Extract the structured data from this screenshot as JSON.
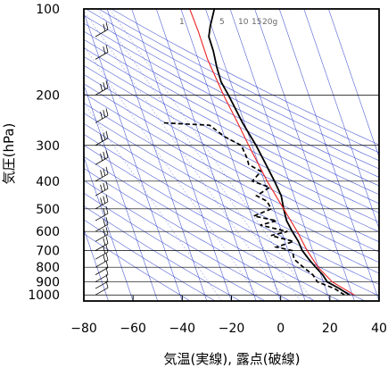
{
  "chart_data": {
    "type": "skew-t",
    "xlabel": "気温(実線), 露点(破線)",
    "ylabel": "気圧(hPa)",
    "xlim": [
      -80,
      40
    ],
    "ylim": [
      1050,
      100
    ],
    "y_scale": "log",
    "x_ticks": [
      -80,
      -60,
      -40,
      -20,
      0,
      20,
      40
    ],
    "x_tick_labels": [
      "−80",
      "−60",
      "−40",
      "−20",
      "0",
      "20",
      "40"
    ],
    "y_ticks": [
      100,
      200,
      300,
      400,
      500,
      600,
      700,
      800,
      900,
      1000
    ],
    "y_tick_labels": [
      "100",
      "200",
      "300",
      "400",
      "500",
      "600",
      "700",
      "800",
      "900",
      "1000"
    ],
    "mixing_ratio_labels": [
      "1",
      "5",
      "10",
      "15",
      "20g"
    ],
    "colors": {
      "isotherms": "#3344cc",
      "adiabats": "#3344cc",
      "parcel": "#ee2222",
      "profile": "#000000",
      "grid": "#000000"
    },
    "series": [
      {
        "name": "",
        "style": "solid",
        "color": "#000000",
        "points": [
          [
            1000,
            27
          ],
          [
            950,
            22
          ],
          [
            900,
            16
          ],
          [
            850,
            13
          ],
          [
            800,
            9
          ],
          [
            750,
            5
          ],
          [
            700,
            1
          ],
          [
            650,
            -2
          ],
          [
            600,
            -6
          ],
          [
            550,
            -10
          ],
          [
            500,
            -13
          ],
          [
            450,
            -16
          ],
          [
            400,
            -21
          ],
          [
            350,
            -27
          ],
          [
            300,
            -34
          ],
          [
            250,
            -43
          ],
          [
            200,
            -53
          ],
          [
            180,
            -58
          ],
          [
            160,
            -62
          ],
          [
            140,
            -66
          ],
          [
            125,
            -70
          ],
          [
            115,
            -71
          ],
          [
            100,
            -72
          ]
        ]
      },
      {
        "name": "",
        "style": "dashed",
        "color": "#000000",
        "points": [
          [
            1000,
            25
          ],
          [
            950,
            20
          ],
          [
            900,
            12
          ],
          [
            850,
            9
          ],
          [
            800,
            4
          ],
          [
            750,
            -1
          ],
          [
            700,
            -3
          ],
          [
            680,
            -10
          ],
          [
            650,
            -4
          ],
          [
            620,
            -14
          ],
          [
            600,
            -8
          ],
          [
            570,
            -20
          ],
          [
            550,
            -14
          ],
          [
            530,
            -24
          ],
          [
            500,
            -18
          ],
          [
            470,
            -21
          ],
          [
            450,
            -26
          ],
          [
            420,
            -22
          ],
          [
            400,
            -30
          ],
          [
            370,
            -28
          ],
          [
            350,
            -34
          ],
          [
            330,
            -36
          ],
          [
            300,
            -40
          ],
          [
            280,
            -48
          ],
          [
            255,
            -56
          ],
          [
            250,
            -76
          ]
        ]
      },
      {
        "name": "",
        "style": "solid",
        "color": "#ee2222",
        "points": [
          [
            1000,
            29
          ],
          [
            900,
            18
          ],
          [
            800,
            10
          ],
          [
            700,
            3
          ],
          [
            600,
            -4
          ],
          [
            500,
            -13
          ],
          [
            400,
            -24
          ],
          [
            300,
            -37
          ],
          [
            250,
            -45
          ],
          [
            200,
            -55
          ],
          [
            150,
            -67
          ],
          [
            120,
            -75
          ],
          [
            100,
            -82
          ]
        ]
      }
    ],
    "wind_barbs": [
      {
        "p": 1000,
        "speed_kt": 10
      },
      {
        "p": 950,
        "speed_kt": 10
      },
      {
        "p": 900,
        "speed_kt": 10
      },
      {
        "p": 850,
        "speed_kt": 10
      },
      {
        "p": 800,
        "speed_kt": 15
      },
      {
        "p": 750,
        "speed_kt": 15
      },
      {
        "p": 700,
        "speed_kt": 20
      },
      {
        "p": 650,
        "speed_kt": 20
      },
      {
        "p": 600,
        "speed_kt": 20
      },
      {
        "p": 550,
        "speed_kt": 20
      },
      {
        "p": 500,
        "speed_kt": 25
      },
      {
        "p": 450,
        "speed_kt": 25
      },
      {
        "p": 400,
        "speed_kt": 25
      },
      {
        "p": 350,
        "speed_kt": 25
      },
      {
        "p": 300,
        "speed_kt": 30
      },
      {
        "p": 250,
        "speed_kt": 30
      },
      {
        "p": 200,
        "speed_kt": 25
      },
      {
        "p": 150,
        "speed_kt": 20
      },
      {
        "p": 125,
        "speed_kt": 20
      },
      {
        "p": 100,
        "speed_kt": 15
      }
    ]
  }
}
